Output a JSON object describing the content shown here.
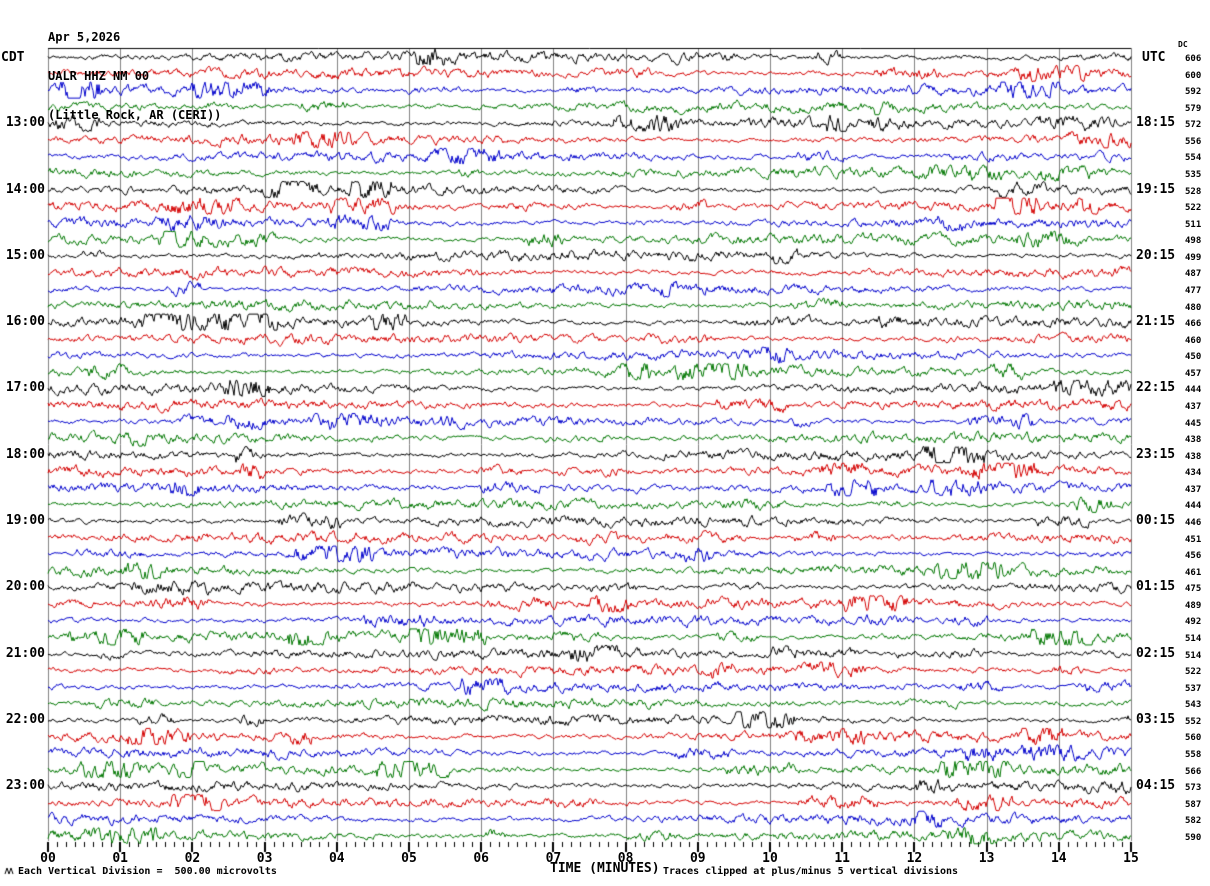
{
  "header": {
    "date": "Apr 5,2026",
    "station": "UALR HHZ NM 00",
    "location": "(Little Rock, AR (CERI))"
  },
  "axes": {
    "left_title": "CDT",
    "right_title": "UTC",
    "dc_title": "DC",
    "x_title": "TIME (MINUTES)",
    "left_labels": [
      {
        "row": 4,
        "text": "13:00"
      },
      {
        "row": 8,
        "text": "14:00"
      },
      {
        "row": 12,
        "text": "15:00"
      },
      {
        "row": 16,
        "text": "16:00"
      },
      {
        "row": 20,
        "text": "17:00"
      },
      {
        "row": 24,
        "text": "18:00"
      },
      {
        "row": 28,
        "text": "19:00"
      },
      {
        "row": 32,
        "text": "20:00"
      },
      {
        "row": 36,
        "text": "21:00"
      },
      {
        "row": 40,
        "text": "22:00"
      },
      {
        "row": 44,
        "text": "23:00"
      }
    ],
    "right_labels": [
      {
        "row": 4,
        "text": "18:15"
      },
      {
        "row": 8,
        "text": "19:15"
      },
      {
        "row": 12,
        "text": "20:15"
      },
      {
        "row": 16,
        "text": "21:15"
      },
      {
        "row": 20,
        "text": "22:15"
      },
      {
        "row": 24,
        "text": "23:15"
      },
      {
        "row": 28,
        "text": "00:15"
      },
      {
        "row": 32,
        "text": "01:15"
      },
      {
        "row": 36,
        "text": "02:15"
      },
      {
        "row": 40,
        "text": "03:15"
      },
      {
        "row": 44,
        "text": "04:15"
      }
    ],
    "x_tick_labels": [
      "00",
      "01",
      "02",
      "03",
      "04",
      "05",
      "06",
      "07",
      "08",
      "09",
      "10",
      "11",
      "12",
      "13",
      "14",
      "15"
    ]
  },
  "footer": {
    "left_note": "Each Vertical Division =  500.00 microvolts",
    "right_note": "Traces clipped at plus/minus 5 vertical divisions"
  },
  "chart_data": {
    "type": "line",
    "subtype": "helicorder_seismogram",
    "title": "UALR HHZ NM 00 (Little Rock, AR (CERI)) Apr 5,2026",
    "xlabel": "TIME (MINUTES)",
    "x_range_minutes": [
      0,
      15
    ],
    "x_major_tick_every_min": 1,
    "x_minor_ticks_per_major": 8,
    "minutes_per_row": 15,
    "num_rows": 48,
    "rows_per_hour": 4,
    "trace_colors_cycle": [
      "#000000",
      "#d40000",
      "#0000cc",
      "#007700"
    ],
    "grid_color": "#808080",
    "border_color": "#000000",
    "division_microvolts": 500.0,
    "clip_divisions": 5,
    "dc_offsets": [
      606,
      600,
      592,
      579,
      572,
      556,
      554,
      535,
      528,
      522,
      511,
      498,
      499,
      487,
      477,
      480,
      466,
      460,
      450,
      457,
      444,
      437,
      445,
      438,
      438,
      434,
      437,
      444,
      446,
      451,
      456,
      461,
      475,
      489,
      492,
      514,
      514,
      522,
      537,
      543,
      552,
      560,
      558,
      566,
      573,
      587,
      582,
      590
    ]
  }
}
